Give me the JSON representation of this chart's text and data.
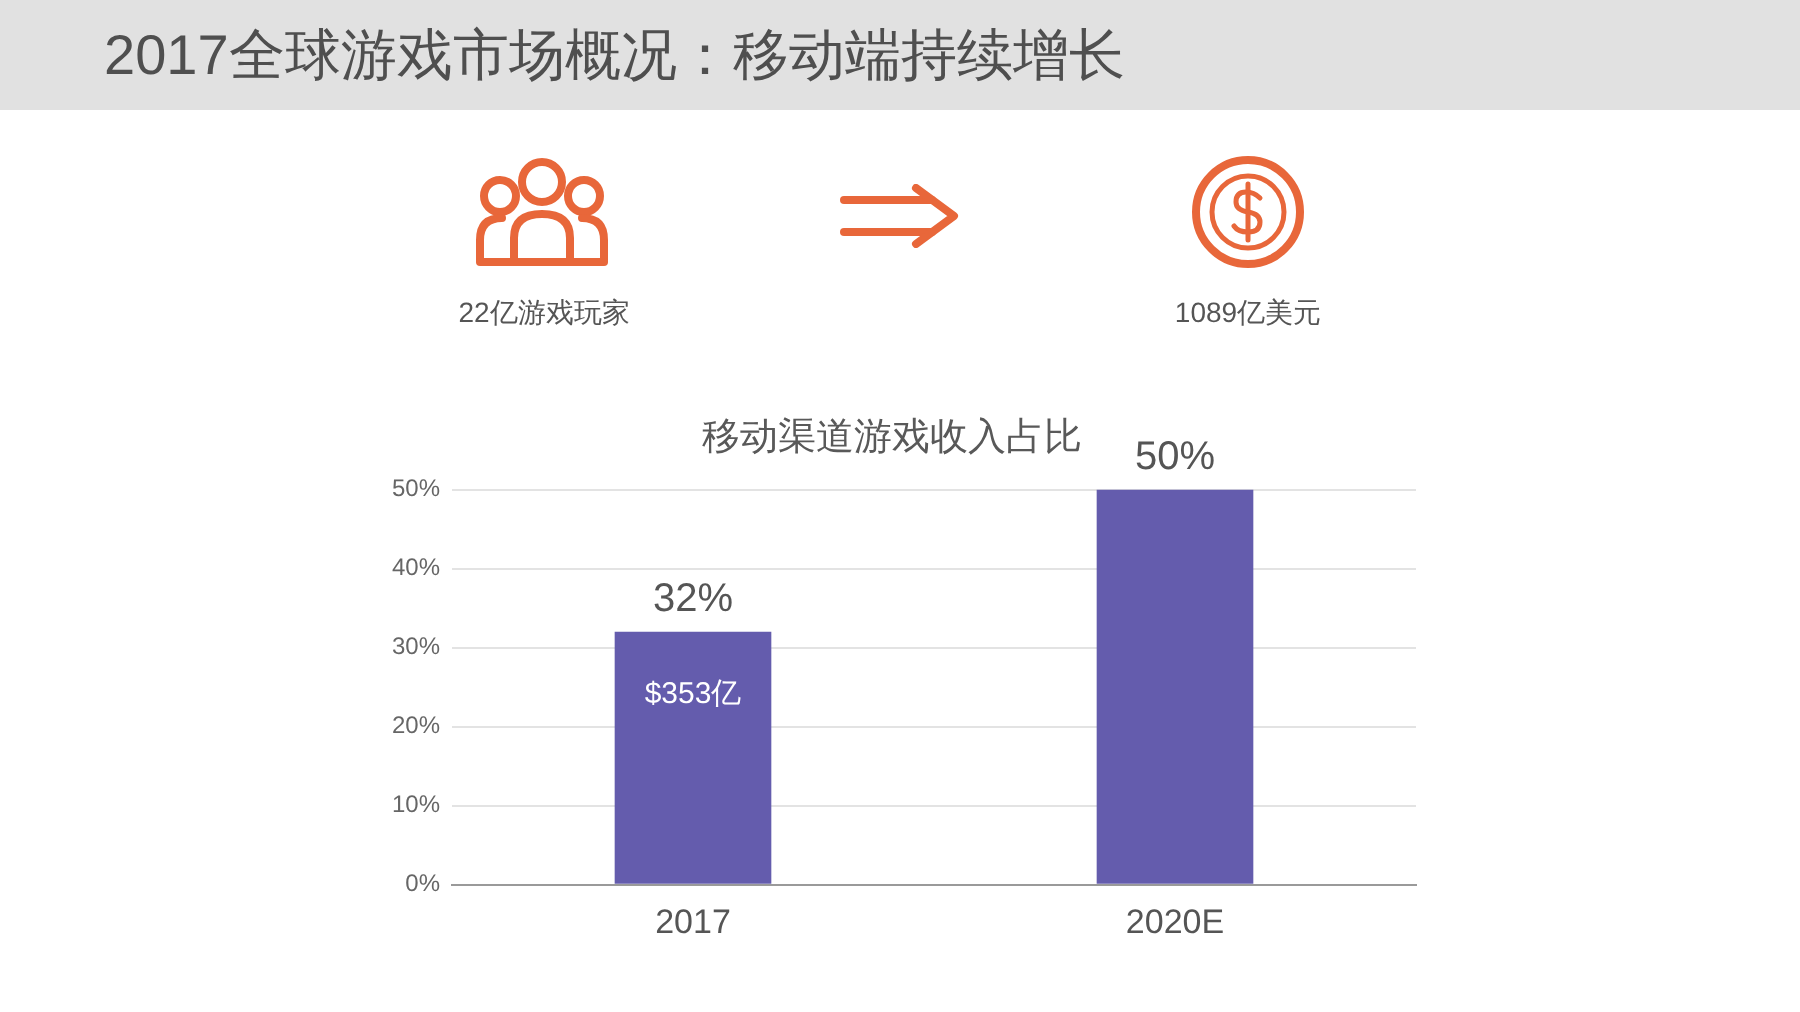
{
  "chart_data": [
    {
      "type": "other",
      "title": "2017全球游戏市场概况：移动端持续增长",
      "annotations": [
        "22亿游戏玩家",
        "1089亿美元"
      ]
    },
    {
      "type": "bar",
      "title": "移动渠道游戏收入占比",
      "categories": [
        "2017",
        "2020E"
      ],
      "values": [
        32,
        50
      ],
      "color": "#645cad",
      "ylim": [
        0,
        50
      ],
      "yticks": [
        {
          "value": 0,
          "label": "0%"
        },
        {
          "value": 10,
          "label": "10%"
        },
        {
          "value": 20,
          "label": "20%"
        },
        {
          "value": 30,
          "label": "30%"
        },
        {
          "value": 40,
          "label": "40%"
        },
        {
          "value": 50,
          "label": "50%"
        }
      ],
      "grid": "y",
      "value_labels": [
        "32%",
        "50%"
      ],
      "annotations": [
        "$353亿"
      ]
    }
  ]
}
